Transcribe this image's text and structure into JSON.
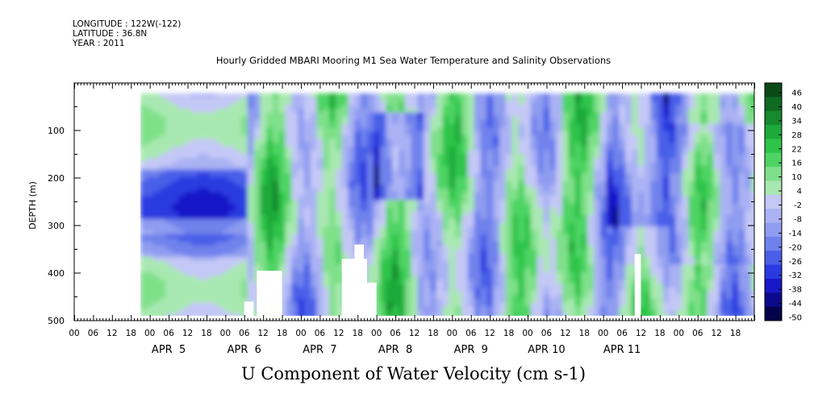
{
  "header": {
    "longitude": "LONGITUDE : 122W(-122)",
    "latitude": "LATITUDE : 36.8N",
    "year": "YEAR : 2011"
  },
  "chart_data": {
    "type": "heatmap",
    "title": "Hourly Gridded MBARI Mooring M1 Sea Water Temperature and Salinity Observations",
    "subtitle": "U Component of Water Velocity (cm s-1)",
    "xlabel": "",
    "ylabel": "DEPTH (m)",
    "x_range_hours": [
      -18,
      198
    ],
    "ylim": [
      500,
      0
    ],
    "y_ticks": [
      100,
      200,
      300,
      400,
      500
    ],
    "x_hour_ticks": [
      "00",
      "06",
      "12",
      "18",
      "00",
      "06",
      "12",
      "18",
      "00",
      "06",
      "12",
      "18",
      "00",
      "06",
      "12",
      "18",
      "00",
      "06",
      "12",
      "18",
      "00",
      "06",
      "12",
      "18",
      "00",
      "06",
      "12",
      "18",
      "00",
      "06",
      "12",
      "18"
    ],
    "x_hour_ticks_left": [
      "00",
      "06",
      "12",
      "18"
    ],
    "day_labels": [
      "APR  5",
      "APR  6",
      "APR  7",
      "APR  8",
      "APR  9",
      "APR 10",
      "APR 11"
    ],
    "colorbar": {
      "ticks": [
        "46",
        "40",
        "34",
        "28",
        "22",
        "16",
        "10",
        "4",
        "-2",
        "-8",
        "-14",
        "-20",
        "-26",
        "-32",
        "-38",
        "-44",
        "-50"
      ],
      "min": -50,
      "max": 46,
      "colors": [
        "#04024a",
        "#0b0a8c",
        "#1818c8",
        "#2a3ae0",
        "#4a5fe8",
        "#6f82ec",
        "#8f9cf0",
        "#aab2f4",
        "#c4c8f6",
        "#a8e8b0",
        "#7fe08a",
        "#4ed464",
        "#2ec44a",
        "#1eaa3a",
        "#168a2e",
        "#0f6a22",
        "#0a4a18"
      ]
    },
    "grid": false,
    "legend": "colorbar-right"
  }
}
